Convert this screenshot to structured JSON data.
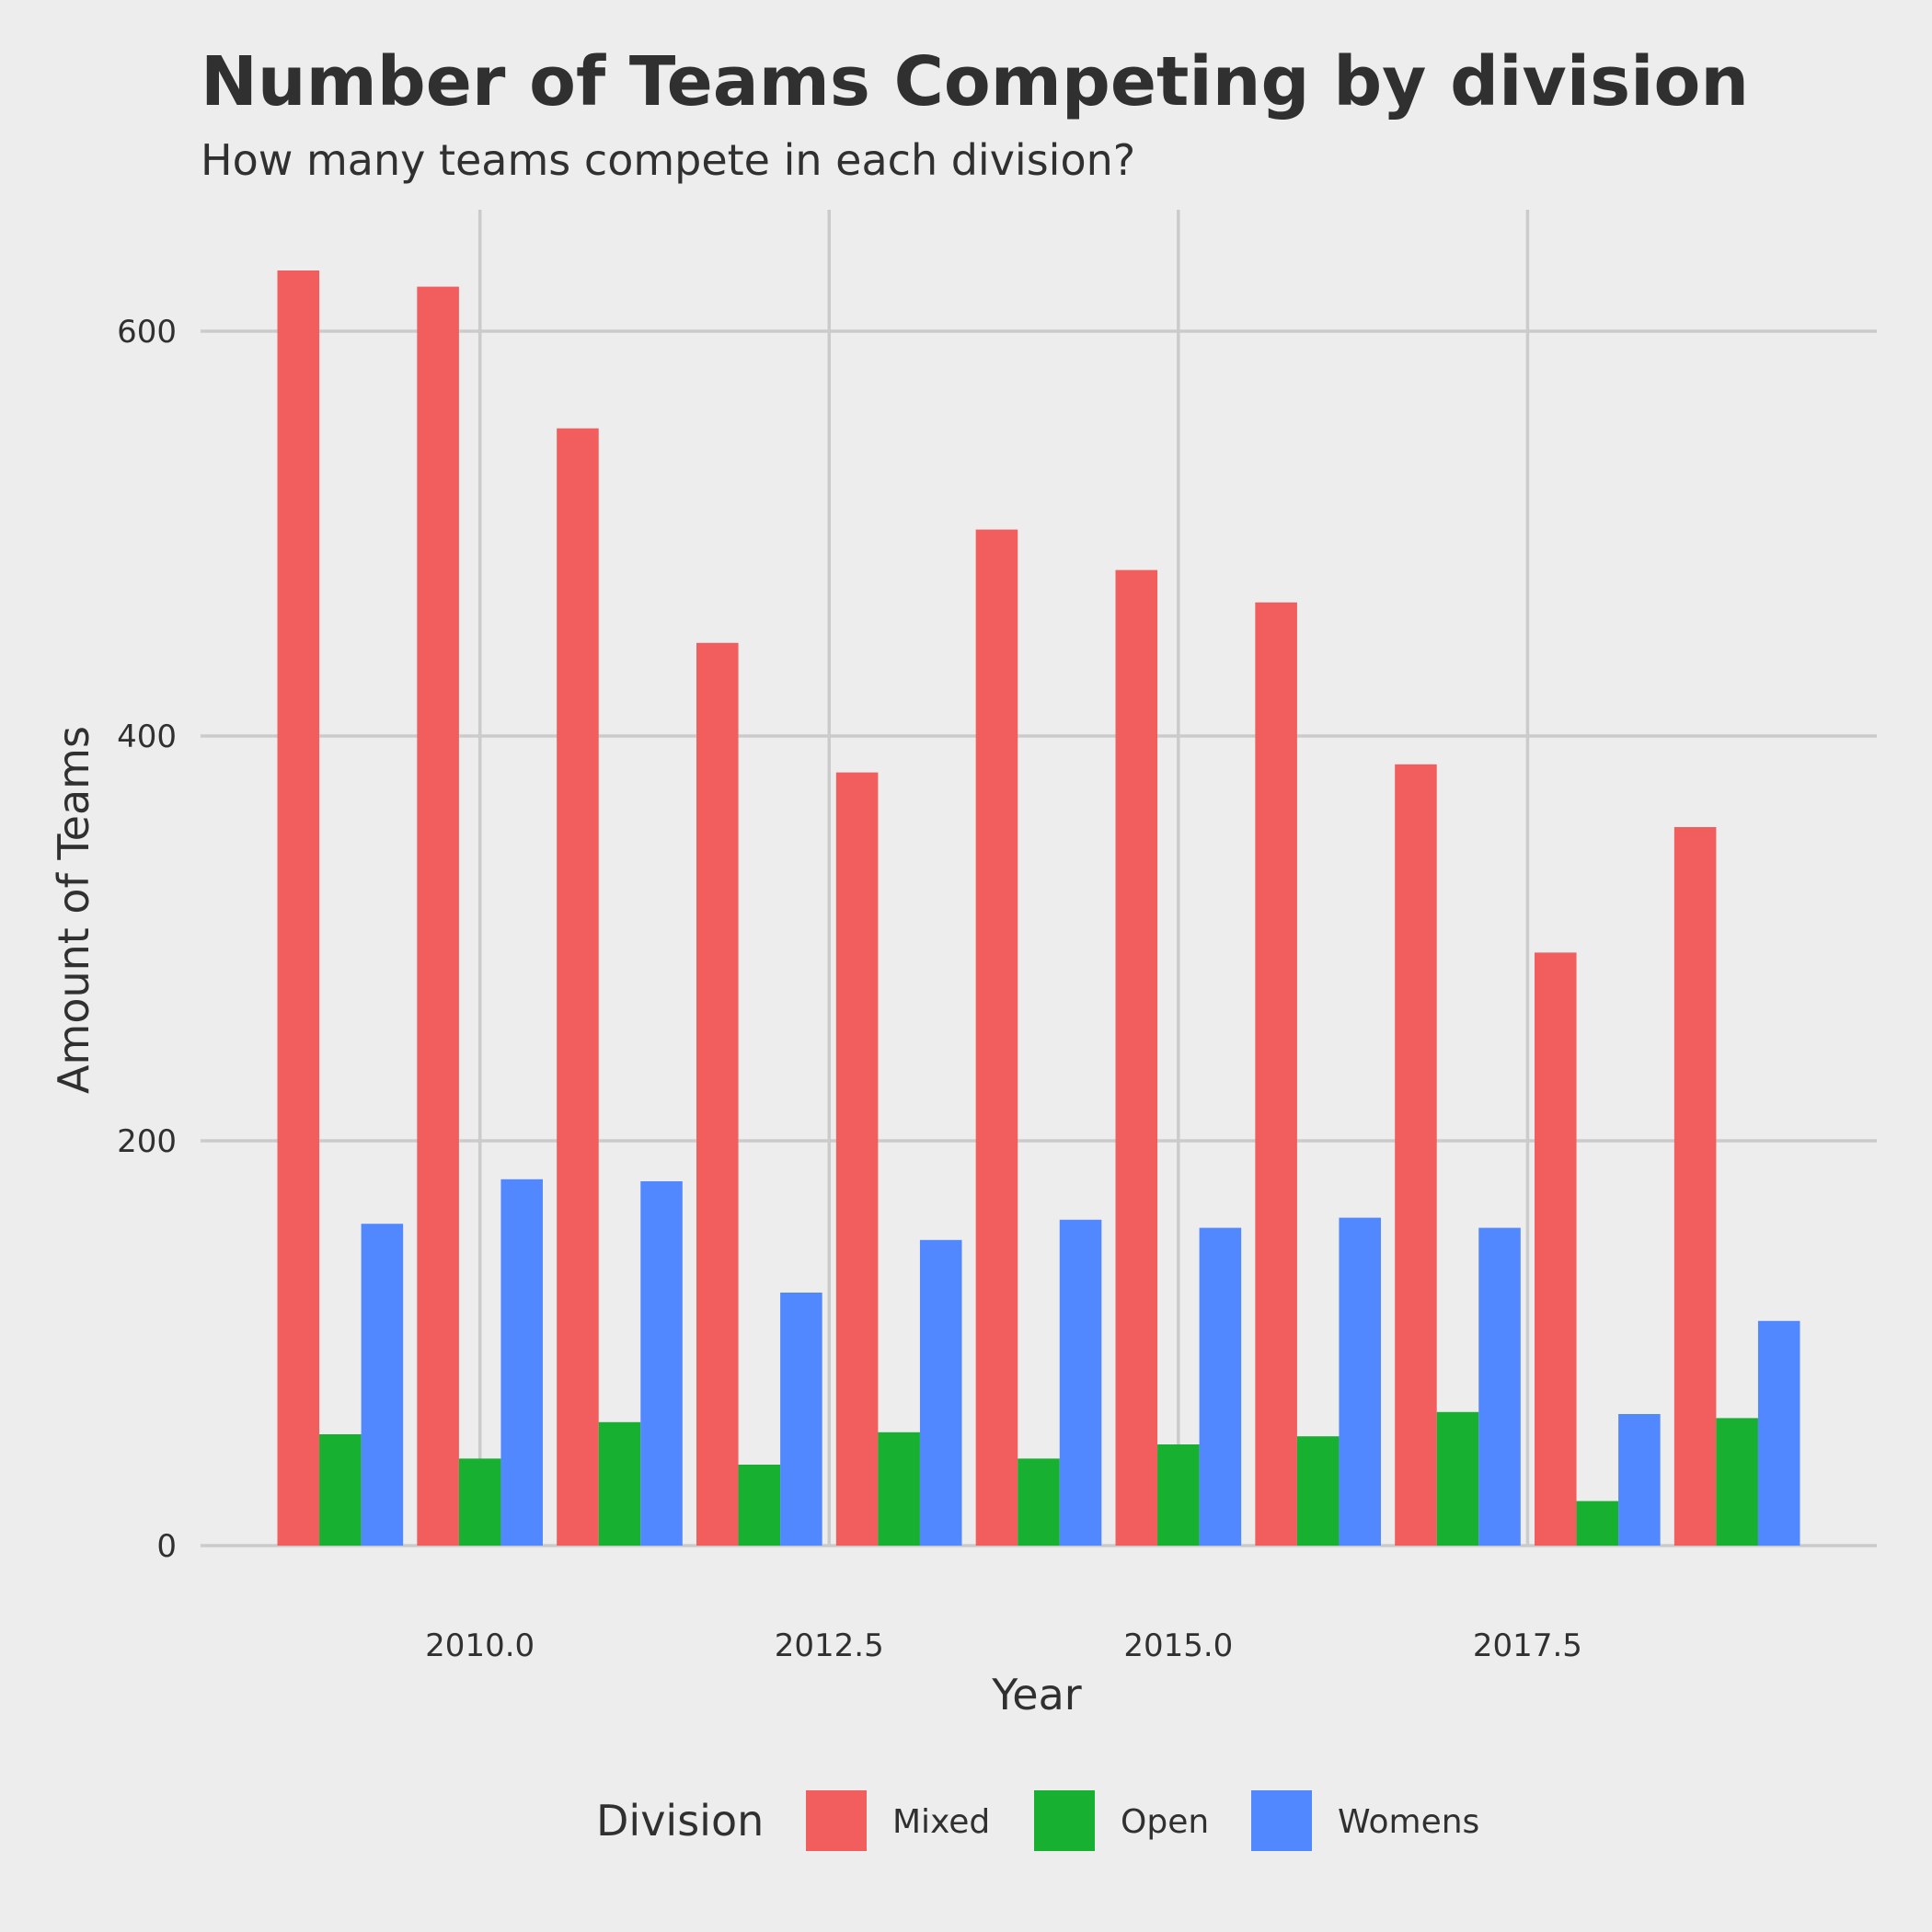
{
  "chart_data": {
    "type": "bar",
    "title": "Number of Teams Competing by division",
    "subtitle": "How many teams compete in each division?",
    "xlabel": "Year",
    "ylabel": "Amount of Teams",
    "x": [
      2009,
      2010,
      2011,
      2012,
      2013,
      2014,
      2015,
      2016,
      2017,
      2018,
      2019
    ],
    "series": [
      {
        "name": "Mixed",
        "color": "#f25e5e",
        "values": [
          630,
          622,
          552,
          446,
          382,
          502,
          482,
          466,
          386,
          293,
          355
        ]
      },
      {
        "name": "Open",
        "color": "#18b030",
        "values": [
          55,
          43,
          61,
          40,
          56,
          43,
          50,
          54,
          66,
          22,
          63
        ]
      },
      {
        "name": "Womens",
        "color": "#5288ff",
        "values": [
          159,
          181,
          180,
          125,
          151,
          161,
          157,
          162,
          157,
          65,
          111
        ]
      }
    ],
    "xlim": [
      2008.0,
      2020.0
    ],
    "ylim": [
      0,
      660
    ],
    "x_ticks": [
      "2010.0",
      "2012.5",
      "2015.0",
      "2017.5"
    ],
    "y_ticks": [
      "0",
      "200",
      "400",
      "600"
    ],
    "legend": {
      "title": "Division",
      "position": "bottom"
    },
    "grid": true
  }
}
